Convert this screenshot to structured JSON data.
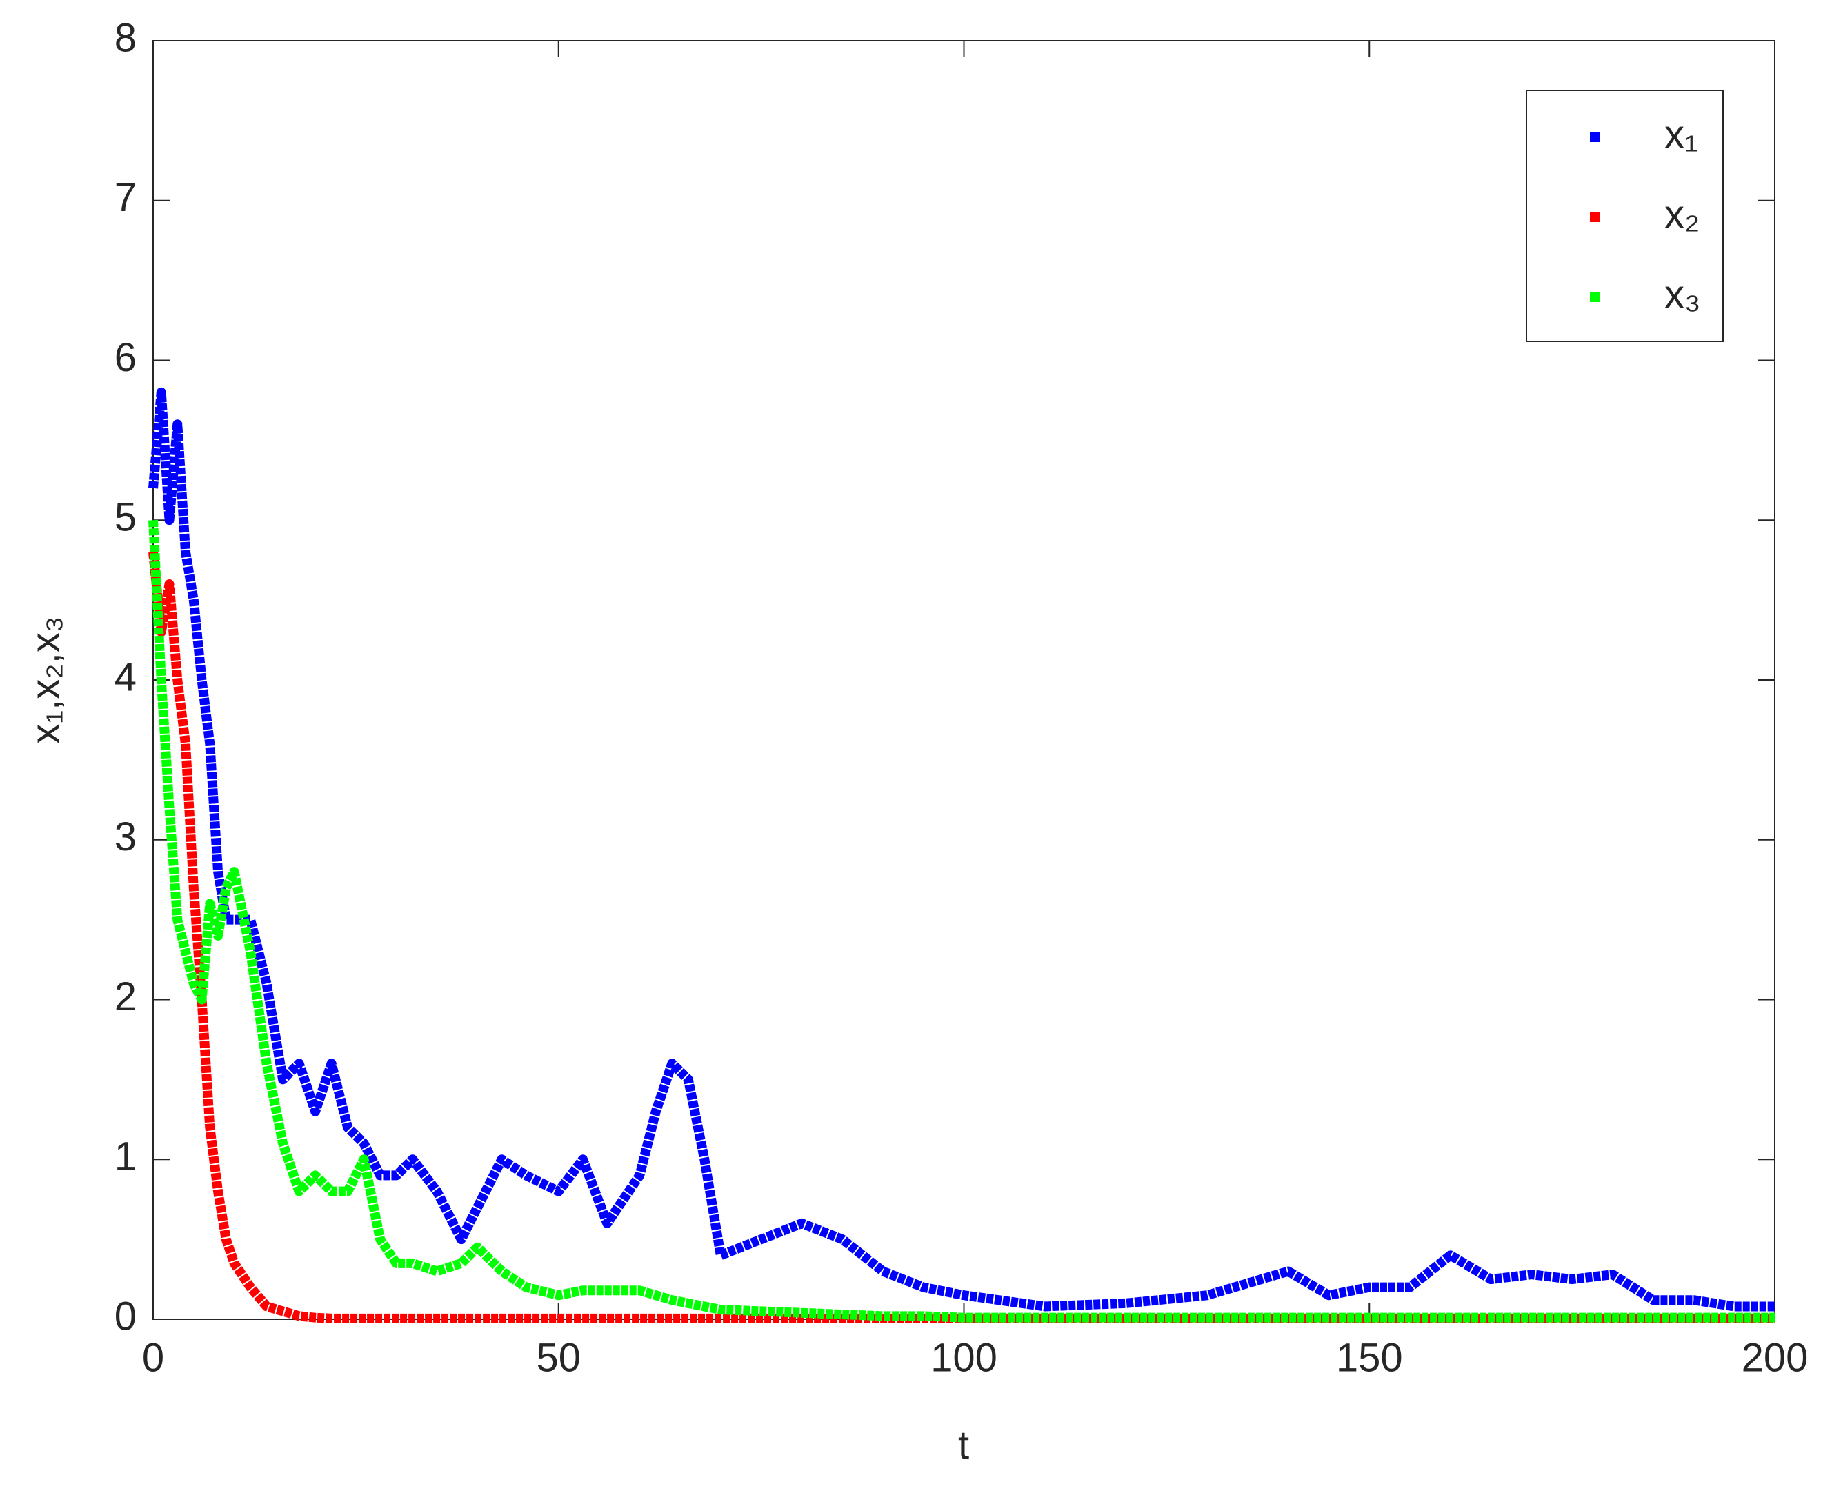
{
  "chart_data": {
    "type": "line",
    "xlabel": "t",
    "ylabel": "x₁,x₂,x₃",
    "x": [
      0,
      1,
      2,
      3,
      4,
      5,
      6,
      7,
      8,
      9,
      10,
      12,
      14,
      16,
      18,
      20,
      22,
      24,
      26,
      28,
      30,
      32,
      35,
      38,
      40,
      43,
      46,
      50,
      53,
      56,
      60,
      62,
      64,
      66,
      68,
      70,
      75,
      80,
      85,
      90,
      95,
      100,
      110,
      120,
      130,
      140,
      145,
      150,
      155,
      160,
      165,
      170,
      175,
      180,
      185,
      190,
      195,
      200
    ],
    "series": [
      {
        "name": "x₁",
        "color": "#0000ff",
        "values": [
          5.2,
          5.8,
          5.0,
          5.6,
          4.8,
          4.5,
          4.0,
          3.6,
          2.8,
          2.5,
          2.5,
          2.5,
          2.1,
          1.5,
          1.6,
          1.3,
          1.6,
          1.2,
          1.1,
          0.9,
          0.9,
          1.0,
          0.8,
          0.5,
          0.7,
          1.0,
          0.9,
          0.8,
          1.0,
          0.6,
          0.9,
          1.3,
          1.6,
          1.5,
          1.0,
          0.4,
          0.5,
          0.6,
          0.5,
          0.3,
          0.2,
          0.15,
          0.08,
          0.1,
          0.15,
          0.3,
          0.15,
          0.2,
          0.2,
          0.4,
          0.25,
          0.28,
          0.25,
          0.28,
          0.12,
          0.12,
          0.08,
          0.08
        ]
      },
      {
        "name": "x₂",
        "color": "#ff0000",
        "values": [
          4.8,
          4.3,
          4.6,
          4.0,
          3.6,
          2.7,
          2.0,
          1.2,
          0.8,
          0.5,
          0.35,
          0.2,
          0.08,
          0.05,
          0.02,
          0.01,
          0.005,
          0.005,
          0.005,
          0.005,
          0.005,
          0.005,
          0.005,
          0.005,
          0.005,
          0.005,
          0.005,
          0.005,
          0.005,
          0.005,
          0.005,
          0.005,
          0.005,
          0.005,
          0.005,
          0.005,
          0.005,
          0.005,
          0.005,
          0.005,
          0.005,
          0.005,
          0.005,
          0.005,
          0.005,
          0.005,
          0.005,
          0.005,
          0.005,
          0.005,
          0.005,
          0.005,
          0.005,
          0.005,
          0.005,
          0.005,
          0.005,
          0.005
        ]
      },
      {
        "name": "x₃",
        "color": "#00ff00",
        "values": [
          5.0,
          4.0,
          3.2,
          2.5,
          2.3,
          2.1,
          2.0,
          2.6,
          2.4,
          2.7,
          2.8,
          2.3,
          1.6,
          1.1,
          0.8,
          0.9,
          0.8,
          0.8,
          1.0,
          0.5,
          0.35,
          0.35,
          0.3,
          0.35,
          0.45,
          0.3,
          0.2,
          0.15,
          0.18,
          0.18,
          0.18,
          0.15,
          0.12,
          0.1,
          0.08,
          0.06,
          0.05,
          0.04,
          0.03,
          0.02,
          0.02,
          0.01,
          0.01,
          0.01,
          0.01,
          0.01,
          0.01,
          0.01,
          0.01,
          0.01,
          0.01,
          0.01,
          0.01,
          0.01,
          0.01,
          0.01,
          0.01,
          0.01
        ]
      }
    ],
    "xlim": [
      0,
      200
    ],
    "xticks": [
      0,
      50,
      100,
      150,
      200
    ],
    "ylim": [
      0,
      8
    ],
    "yticks": [
      0,
      1,
      2,
      3,
      4,
      5,
      6,
      7,
      8
    ],
    "legend": "top-right"
  }
}
